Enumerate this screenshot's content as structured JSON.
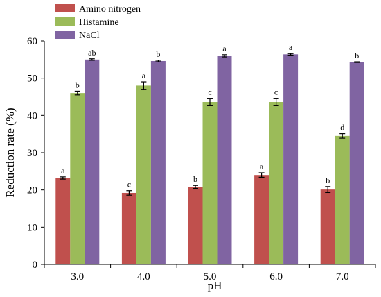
{
  "chart_data": {
    "type": "bar",
    "xlabel": "pH",
    "ylabel": "Reduction rate (%)",
    "ylim": [
      0,
      60
    ],
    "yticks": [
      0,
      10,
      20,
      30,
      40,
      50,
      60
    ],
    "categories": [
      "3.0",
      "4.0",
      "5.0",
      "6.0",
      "7.0"
    ],
    "legend_position": "top-left",
    "grid": false,
    "series": [
      {
        "name": "Amino nitrogen",
        "color": "#C0504D",
        "values": [
          23.2,
          19.2,
          20.8,
          24.0,
          20.1
        ],
        "errors": [
          0.3,
          0.6,
          0.4,
          0.6,
          0.8
        ],
        "labels": [
          "a",
          "c",
          "b",
          "a",
          "b"
        ]
      },
      {
        "name": "Histamine",
        "color": "#9BBB59",
        "values": [
          46.0,
          48.0,
          43.6,
          43.6,
          34.5
        ],
        "errors": [
          0.5,
          1.0,
          1.0,
          1.0,
          0.6
        ],
        "labels": [
          "b",
          "a",
          "c",
          "c",
          "d"
        ]
      },
      {
        "name": "NaCl",
        "color": "#8064A2",
        "values": [
          55.0,
          54.6,
          56.0,
          56.4,
          54.3
        ],
        "errors": [
          0.2,
          0.2,
          0.3,
          0.2,
          0.1
        ],
        "labels": [
          "ab",
          "b",
          "a",
          "a",
          "b"
        ]
      }
    ]
  }
}
